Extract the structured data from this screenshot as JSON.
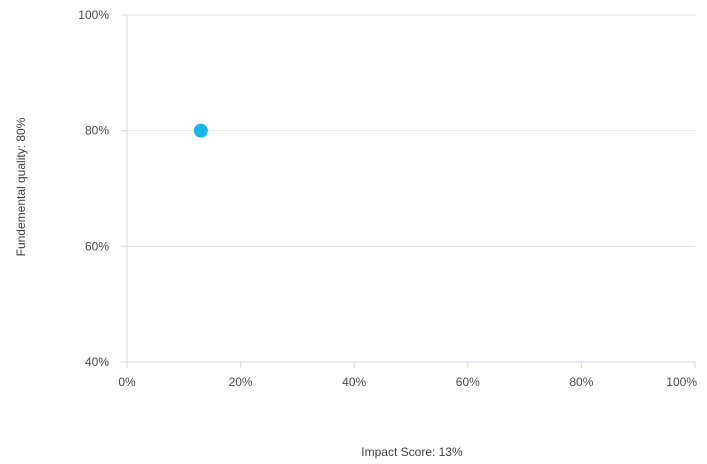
{
  "chart_data": {
    "type": "scatter",
    "title": "",
    "xlabel": "Impact Score: 13%",
    "ylabel": "Fundemental quality: 80%",
    "xlim": [
      0,
      100
    ],
    "ylim": [
      40,
      100
    ],
    "x_ticks": [
      "0%",
      "20%",
      "40%",
      "60%",
      "80%",
      "100%"
    ],
    "y_ticks": [
      "40%",
      "60%",
      "80%",
      "100%"
    ],
    "grid": true,
    "points": [
      {
        "x": 13,
        "y": 80
      }
    ],
    "colors": {
      "point": "#1ab8ea",
      "grid": "#e4e4ea",
      "axis": "#d7d9ec"
    }
  }
}
